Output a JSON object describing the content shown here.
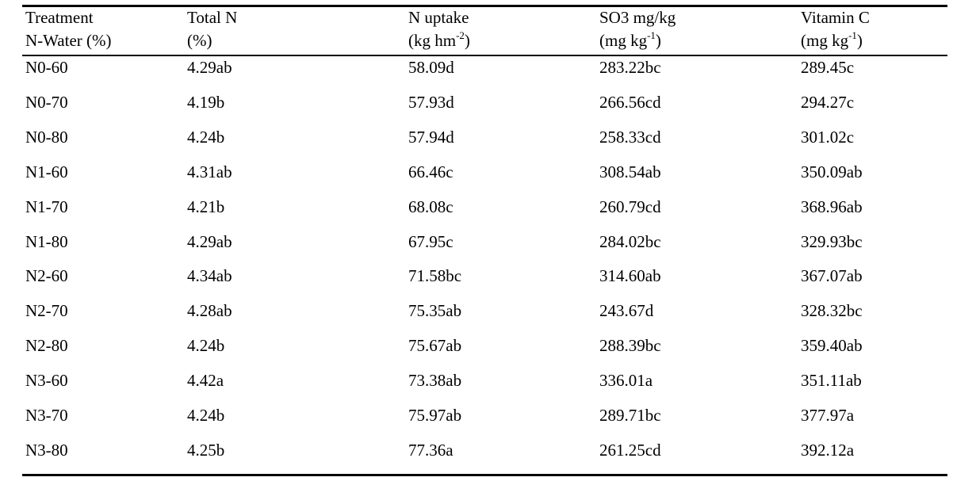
{
  "table": {
    "header": [
      {
        "line1": "Treatment",
        "line2": "N-Water (%)",
        "line2_sup": "",
        "line2_end": ""
      },
      {
        "line1": "Total N",
        "line2": "(%)",
        "line2_sup": "",
        "line2_end": ""
      },
      {
        "line1": "N uptake",
        "line2": "(kg hm",
        "line2_sup": "-2",
        "line2_end": ")"
      },
      {
        "line1": "SO3 mg/kg",
        "line2": "(mg kg",
        "line2_sup": "-1",
        "line2_end": ")"
      },
      {
        "line1": "Vitamin C",
        "line2": "(mg kg",
        "line2_sup": "-1",
        "line2_end": ")"
      }
    ],
    "rows": [
      [
        "N0-60",
        "4.29ab",
        "58.09d",
        "283.22bc",
        "289.45c"
      ],
      [
        "N0-70",
        "4.19b",
        "57.93d",
        "266.56cd",
        "294.27c"
      ],
      [
        "N0-80",
        "4.24b",
        "57.94d",
        "258.33cd",
        "301.02c"
      ],
      [
        "N1-60",
        "4.31ab",
        "66.46c",
        "308.54ab",
        "350.09ab"
      ],
      [
        "N1-70",
        "4.21b",
        "68.08c",
        "260.79cd",
        "368.96ab"
      ],
      [
        "N1-80",
        "4.29ab",
        "67.95c",
        "284.02bc",
        "329.93bc"
      ],
      [
        "N2-60",
        "4.34ab",
        "71.58bc",
        "314.60ab",
        "367.07ab"
      ],
      [
        "N2-70",
        "4.28ab",
        "75.35ab",
        "243.67d",
        "328.32bc"
      ],
      [
        "N2-80",
        "4.24b",
        "75.67ab",
        "288.39bc",
        "359.40ab"
      ],
      [
        "N3-60",
        "4.42a",
        "73.38ab",
        "336.01a",
        "351.11ab"
      ],
      [
        "N3-70",
        "4.24b",
        "75.97ab",
        "289.71bc",
        "377.97a"
      ],
      [
        "N3-80",
        "4.25b",
        "77.36a",
        "261.25cd",
        "392.12a"
      ]
    ]
  }
}
